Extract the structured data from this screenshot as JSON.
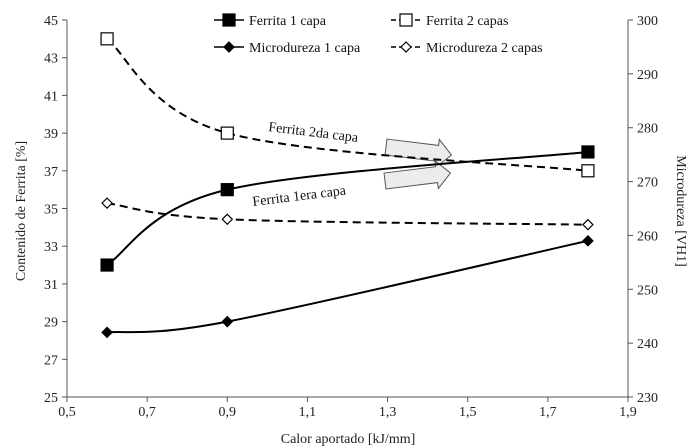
{
  "chart_data": {
    "type": "line",
    "xlabel": "Calor aportado [kJ/mm]",
    "ylabel_left": "Contenido de Ferrita [%]",
    "ylabel_right": "Microdureza [VH1]",
    "xlim": [
      0.5,
      1.9
    ],
    "ylim_left": [
      25,
      45
    ],
    "ylim_right": [
      230,
      300
    ],
    "x_ticks": [
      "0,5",
      "0,7",
      "0,9",
      "1,1",
      "1,3",
      "1,5",
      "1,7",
      "1,9"
    ],
    "y_left_ticks": [
      "25",
      "27",
      "29",
      "31",
      "33",
      "35",
      "37",
      "39",
      "41",
      "43",
      "45"
    ],
    "y_right_ticks": [
      "230",
      "240",
      "250",
      "260",
      "270",
      "280",
      "290",
      "300"
    ],
    "grid": false,
    "legend_position": "top",
    "series": [
      {
        "name": "Ferrita 1 capa",
        "axis": "left",
        "marker": "square-filled",
        "style": "solid",
        "color": "#000000",
        "x": [
          0.6,
          0.9,
          1.8
        ],
        "y": [
          32,
          36,
          38
        ]
      },
      {
        "name": "Ferrita 2 capas",
        "axis": "left",
        "marker": "square-open",
        "style": "dashed",
        "color": "#000000",
        "x": [
          0.6,
          0.9,
          1.8
        ],
        "y": [
          44,
          39,
          37
        ]
      },
      {
        "name": "Microdureza 1 capa",
        "axis": "right",
        "marker": "diamond-filled",
        "style": "solid",
        "color": "#000000",
        "x": [
          0.6,
          0.9,
          1.8
        ],
        "y": [
          242,
          244,
          259
        ]
      },
      {
        "name": "Microdureza 2 capas",
        "axis": "right",
        "marker": "diamond-open",
        "style": "dashed",
        "color": "#000000",
        "x": [
          0.6,
          0.9,
          1.8
        ],
        "y": [
          266,
          263,
          262
        ]
      }
    ],
    "annotations": [
      {
        "text": "Ferrita 2da capa",
        "target": "Ferrita 2 capas"
      },
      {
        "text": "Ferrita 1era capa",
        "target": "Ferrita 1 capa"
      }
    ]
  }
}
